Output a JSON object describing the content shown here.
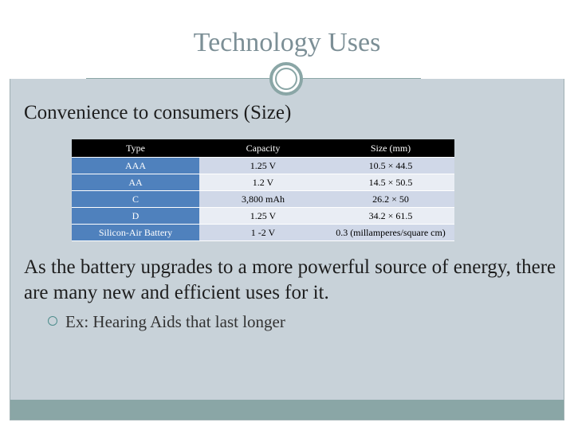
{
  "slide": {
    "title": "Technology Uses",
    "bullet_marker": "",
    "bullet1": "Convenience to consumers (Size)",
    "bullet2": "As the battery upgrades to a more powerful source of energy, there are many new and efficient uses for it.",
    "sub_bullet": "Ex: Hearing Aids that last longer"
  },
  "table": {
    "headers": [
      "Type",
      "Capacity",
      "Size (mm)"
    ],
    "rows": [
      [
        "AAA",
        "1.25 V",
        "10.5 × 44.5"
      ],
      [
        "AA",
        "1.2 V",
        "14.5 × 50.5"
      ],
      [
        "C",
        "3,800 mAh",
        "26.2 × 50"
      ],
      [
        "D",
        "1.25 V",
        "34.2 × 61.5"
      ],
      [
        "Silicon-Air Battery",
        "1 -2 V",
        "0.3 (millamperes/square cm)"
      ]
    ]
  },
  "colors": {
    "accent": "#8aa6a6",
    "title": "#7c8f96",
    "table_header": "#000000",
    "table_type_col": "#4f81bd",
    "content_bg": "#c8d2d9"
  }
}
